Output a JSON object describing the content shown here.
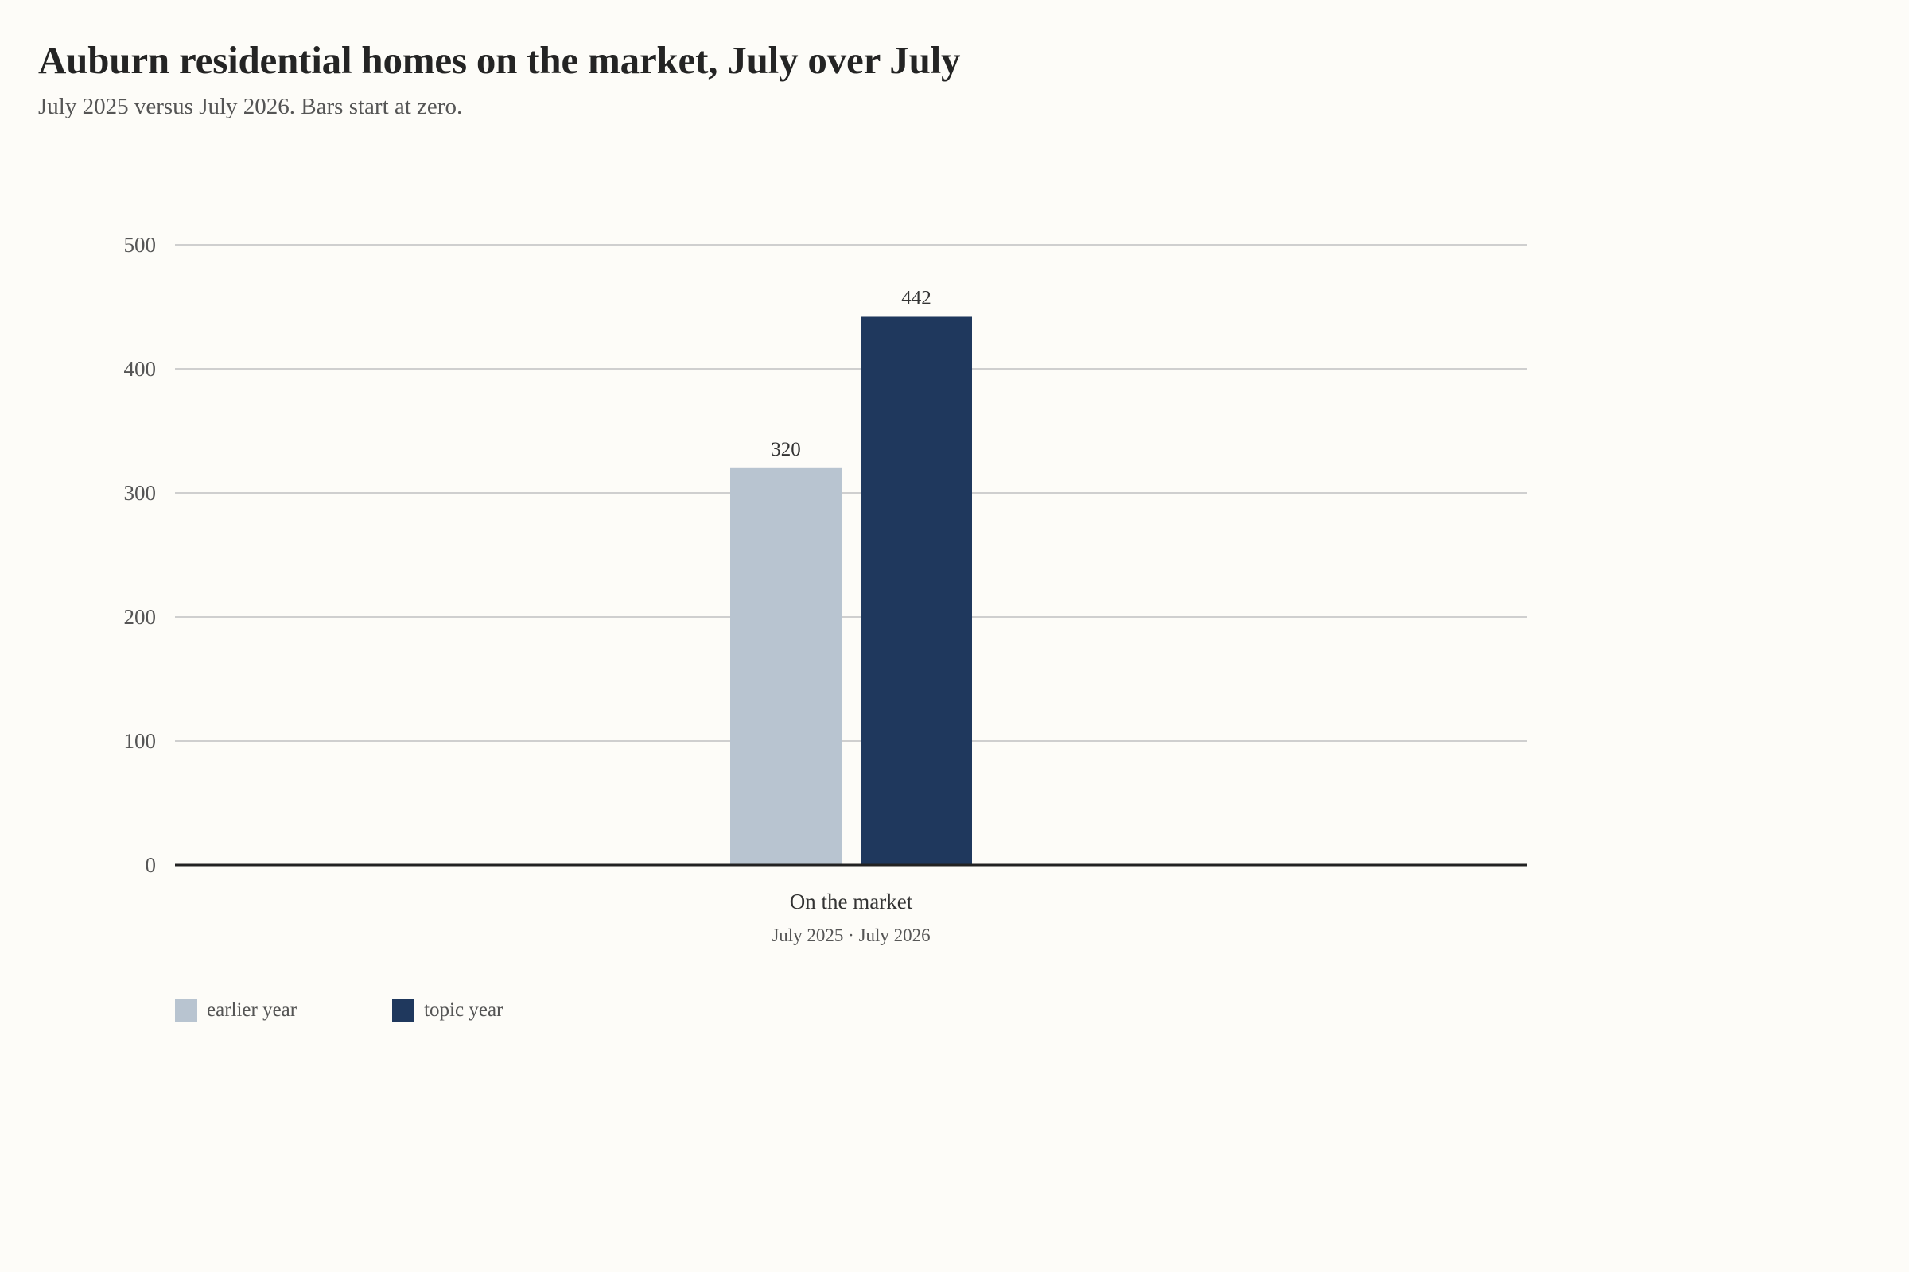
{
  "header": {
    "title": "Auburn residential homes on the market, July over July",
    "subtitle": "July 2025 versus July 2026. Bars start at zero."
  },
  "chart_data": {
    "type": "bar",
    "title": "Auburn residential homes on the market, July over July",
    "subtitle": "July 2025 versus July 2026. Bars start at zero.",
    "categories": [
      "On the market"
    ],
    "category_sublabel": "July 2025 · July 2026",
    "series": [
      {
        "name": "earlier year",
        "values": [
          320
        ],
        "color": "#b8c4d0"
      },
      {
        "name": "topic year",
        "values": [
          442
        ],
        "color": "#1f385d"
      }
    ],
    "ylim": [
      0,
      500
    ],
    "yticks": [
      0,
      100,
      200,
      300,
      400,
      500
    ],
    "grid": true,
    "legend_position": "bottom-left"
  },
  "legend": {
    "items": [
      {
        "label": "earlier year",
        "color": "#b8c4d0"
      },
      {
        "label": "topic year",
        "color": "#1f385d"
      }
    ]
  }
}
